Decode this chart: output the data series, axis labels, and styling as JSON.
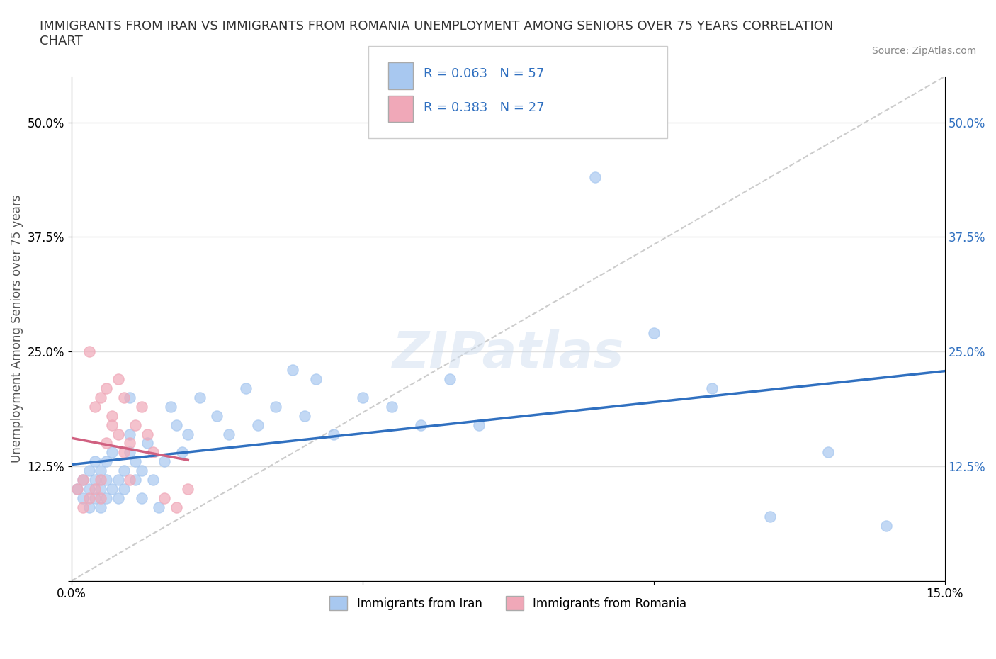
{
  "title": "IMMIGRANTS FROM IRAN VS IMMIGRANTS FROM ROMANIA UNEMPLOYMENT AMONG SENIORS OVER 75 YEARS CORRELATION\nCHART",
  "source": "Source: ZipAtlas.com",
  "ylabel": "Unemployment Among Seniors over 75 years",
  "xlabel_bottom": "",
  "xlim": [
    0.0,
    0.15
  ],
  "ylim": [
    0.0,
    0.55
  ],
  "yticks": [
    0.0,
    0.125,
    0.25,
    0.375,
    0.5
  ],
  "ytick_labels": [
    "",
    "12.5%",
    "25.0%",
    "37.5%",
    "50.0%"
  ],
  "xticks": [
    0.0,
    0.05,
    0.1,
    0.15
  ],
  "xtick_labels": [
    "0.0%",
    "",
    "",
    "15.0%"
  ],
  "iran_color": "#a8c8f0",
  "romania_color": "#f0a8b8",
  "iran_line_color": "#3070c0",
  "romania_line_color": "#d06080",
  "legend_text_color": "#3070c0",
  "r_iran": 0.063,
  "n_iran": 57,
  "r_romania": 0.383,
  "n_romania": 27,
  "watermark": "ZIPatlas",
  "iran_scatter_x": [
    0.001,
    0.002,
    0.002,
    0.003,
    0.003,
    0.003,
    0.004,
    0.004,
    0.004,
    0.005,
    0.005,
    0.005,
    0.006,
    0.006,
    0.006,
    0.007,
    0.007,
    0.008,
    0.008,
    0.009,
    0.009,
    0.01,
    0.01,
    0.01,
    0.011,
    0.011,
    0.012,
    0.012,
    0.013,
    0.014,
    0.015,
    0.016,
    0.017,
    0.018,
    0.019,
    0.02,
    0.022,
    0.025,
    0.027,
    0.03,
    0.032,
    0.035,
    0.038,
    0.04,
    0.042,
    0.045,
    0.05,
    0.055,
    0.06,
    0.065,
    0.07,
    0.09,
    0.1,
    0.11,
    0.12,
    0.13,
    0.14
  ],
  "iran_scatter_y": [
    0.1,
    0.09,
    0.11,
    0.08,
    0.12,
    0.1,
    0.09,
    0.11,
    0.13,
    0.1,
    0.12,
    0.08,
    0.09,
    0.11,
    0.13,
    0.1,
    0.14,
    0.09,
    0.11,
    0.12,
    0.1,
    0.2,
    0.14,
    0.16,
    0.11,
    0.13,
    0.12,
    0.09,
    0.15,
    0.11,
    0.08,
    0.13,
    0.19,
    0.17,
    0.14,
    0.16,
    0.2,
    0.18,
    0.16,
    0.21,
    0.17,
    0.19,
    0.23,
    0.18,
    0.22,
    0.16,
    0.2,
    0.19,
    0.17,
    0.22,
    0.17,
    0.44,
    0.27,
    0.21,
    0.07,
    0.14,
    0.06
  ],
  "romania_scatter_x": [
    0.001,
    0.002,
    0.002,
    0.003,
    0.003,
    0.004,
    0.004,
    0.005,
    0.005,
    0.005,
    0.006,
    0.006,
    0.007,
    0.007,
    0.008,
    0.008,
    0.009,
    0.009,
    0.01,
    0.01,
    0.011,
    0.012,
    0.013,
    0.014,
    0.016,
    0.018,
    0.02
  ],
  "romania_scatter_y": [
    0.1,
    0.08,
    0.11,
    0.09,
    0.25,
    0.1,
    0.19,
    0.09,
    0.2,
    0.11,
    0.15,
    0.21,
    0.17,
    0.18,
    0.16,
    0.22,
    0.2,
    0.14,
    0.15,
    0.11,
    0.17,
    0.19,
    0.16,
    0.14,
    0.09,
    0.08,
    0.1
  ],
  "background_color": "#ffffff",
  "grid_color": "#e0e0e0"
}
